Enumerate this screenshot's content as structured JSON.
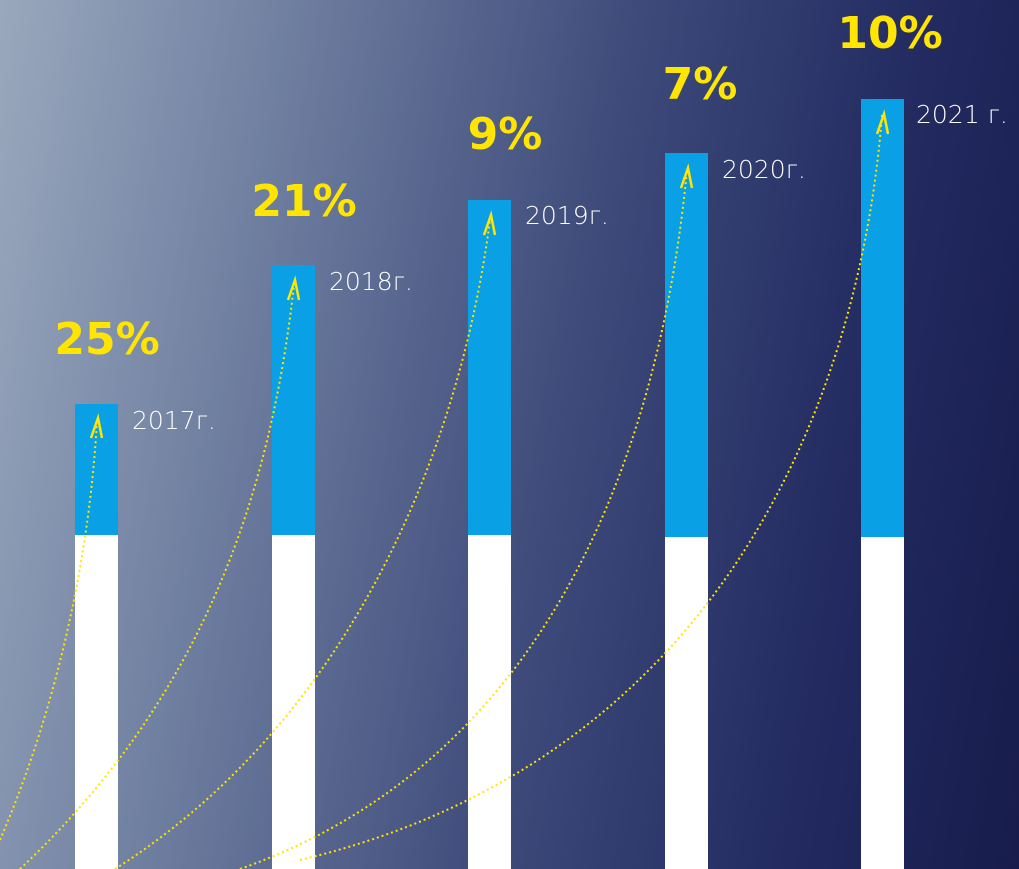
{
  "items": [
    {
      "percent": "25%",
      "year": "2017г."
    },
    {
      "percent": "21%",
      "year": "2018г."
    },
    {
      "percent": "9%",
      "year": "2019г."
    },
    {
      "percent": "7%",
      "year": "2020г."
    },
    {
      "percent": "10%",
      "year": "2021 г."
    }
  ]
}
